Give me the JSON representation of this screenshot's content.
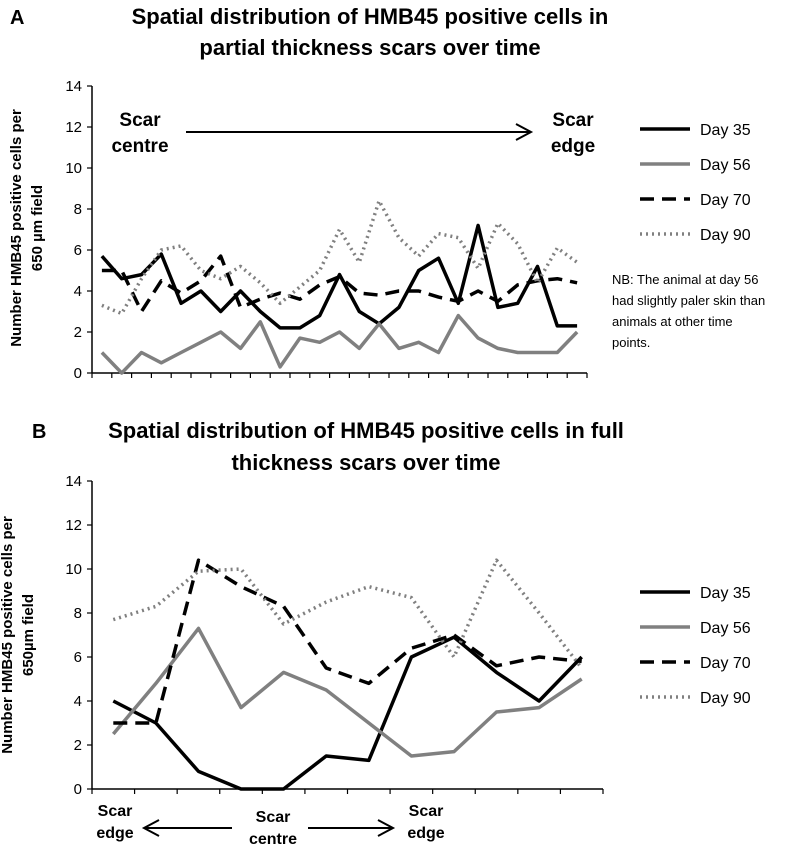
{
  "chart_data": [
    {
      "type": "line",
      "panel_label": "A",
      "title_lines": [
        "Spatial distribution of HMB45 positive cells in",
        "partial thickness scars over time"
      ],
      "ylabel_lines": [
        "Number HMB45 positive cells per",
        "650 µm field"
      ],
      "ylim": [
        0,
        14
      ],
      "yticks": [
        0,
        2,
        4,
        6,
        8,
        10,
        12,
        14
      ],
      "grid": false,
      "legend_position": "right",
      "annotations": {
        "left": [
          "Scar",
          "centre"
        ],
        "right": [
          "Scar",
          "edge"
        ],
        "note": [
          "NB: The animal at day 56",
          "had slightly paler skin than",
          "animals at other time",
          "points."
        ]
      },
      "series": [
        {
          "name": "Day 35",
          "style": "solid",
          "color": "#000000",
          "values": [
            5.7,
            4.6,
            4.8,
            5.8,
            3.4,
            4.0,
            3.0,
            4.0,
            3.0,
            2.2,
            2.2,
            2.8,
            4.8,
            3.0,
            2.4,
            3.2,
            5.0,
            5.6,
            3.4,
            7.2,
            3.2,
            3.4,
            5.2,
            2.3,
            2.3
          ]
        },
        {
          "name": "Day 56",
          "style": "solid",
          "color": "#808080",
          "values": [
            1.0,
            0.0,
            1.0,
            0.5,
            1.0,
            1.5,
            2.0,
            1.2,
            2.5,
            0.3,
            1.7,
            1.5,
            2.0,
            1.2,
            2.4,
            1.2,
            1.5,
            1.0,
            2.8,
            1.7,
            1.2,
            1.0,
            1.0,
            1.0,
            2.0
          ]
        },
        {
          "name": "Day 70",
          "style": "dashed",
          "color": "#000000",
          "values": [
            5.0,
            5.0,
            3.0,
            4.5,
            3.9,
            4.5,
            5.7,
            3.2,
            3.6,
            3.9,
            3.6,
            4.3,
            4.7,
            3.9,
            3.8,
            4.0,
            4.0,
            3.7,
            3.5,
            4.0,
            3.5,
            4.3,
            4.5,
            4.6,
            4.4
          ]
        },
        {
          "name": "Day 90",
          "style": "dotted",
          "color": "#808080",
          "values": [
            3.3,
            2.9,
            4.6,
            6.0,
            6.2,
            5.0,
            4.6,
            5.2,
            4.4,
            3.4,
            4.2,
            5.0,
            7.0,
            5.4,
            8.4,
            6.6,
            5.7,
            6.8,
            6.6,
            5.1,
            7.3,
            6.3,
            4.4,
            6.1,
            5.4
          ]
        }
      ]
    },
    {
      "type": "line",
      "panel_label": "B",
      "title_lines": [
        "Spatial distribution of HMB45 positive cells in full",
        "thickness scars over time"
      ],
      "ylabel_lines": [
        "Number HMB45 positive cells per",
        "650µm field"
      ],
      "ylim": [
        0,
        14
      ],
      "yticks": [
        0,
        2,
        4,
        6,
        8,
        10,
        12,
        14
      ],
      "grid": false,
      "legend_position": "right",
      "annotations": {
        "left": [
          "Scar",
          "edge"
        ],
        "centre": [
          "Scar",
          "centre"
        ],
        "right": [
          "Scar",
          "edge"
        ]
      },
      "series": [
        {
          "name": "Day 35",
          "style": "solid",
          "color": "#000000",
          "values": [
            4.0,
            3.0,
            0.8,
            0.0,
            0.0,
            1.5,
            1.3,
            6.0,
            6.9,
            5.3,
            4.0,
            6.0
          ]
        },
        {
          "name": "Day 56",
          "style": "solid",
          "color": "#808080",
          "values": [
            2.5,
            4.8,
            7.3,
            3.7,
            5.3,
            4.5,
            3.0,
            1.5,
            1.7,
            3.5,
            3.7,
            5.0
          ]
        },
        {
          "name": "Day 70",
          "style": "dashed",
          "color": "#000000",
          "values": [
            3.0,
            3.0,
            10.4,
            9.2,
            8.3,
            5.5,
            4.8,
            6.4,
            7.0,
            5.6,
            6.0,
            5.8
          ]
        },
        {
          "name": "Day 90",
          "style": "dotted",
          "color": "#808080",
          "values": [
            7.7,
            8.3,
            9.9,
            10.0,
            7.5,
            8.5,
            9.2,
            8.7,
            6.0,
            10.4,
            8.0,
            5.5
          ]
        }
      ]
    }
  ]
}
